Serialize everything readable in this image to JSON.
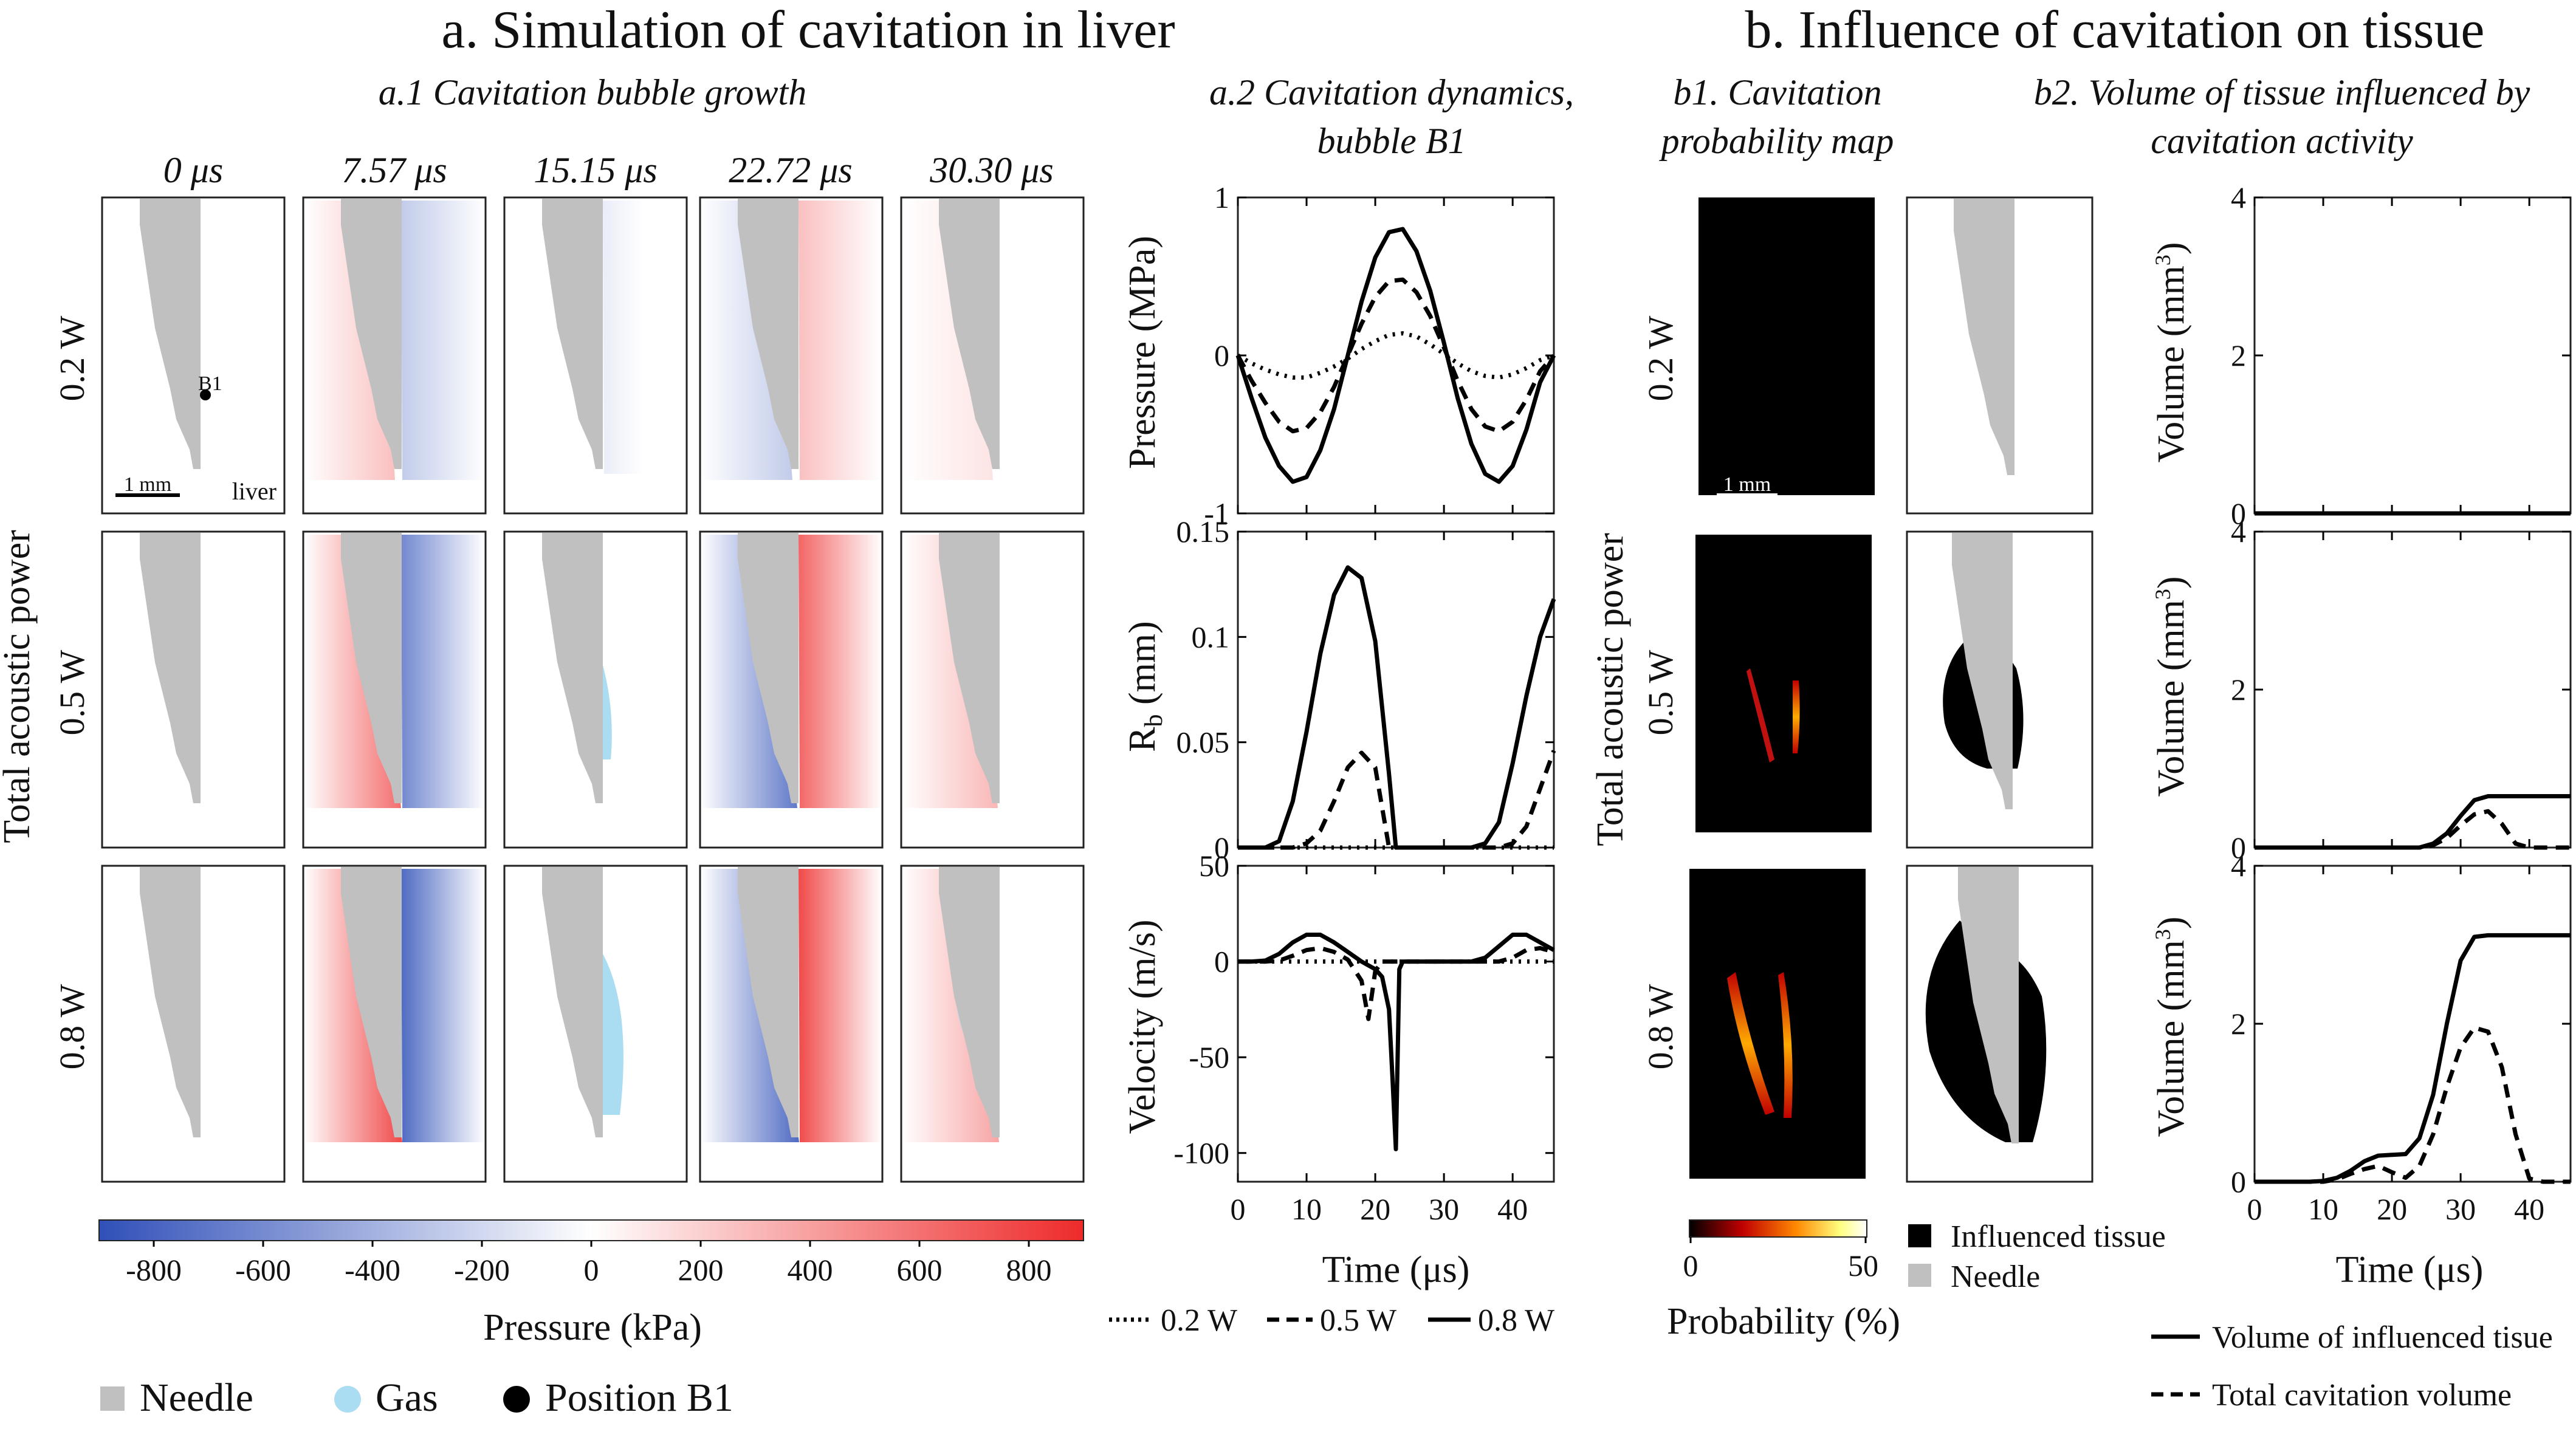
{
  "section_a": {
    "title": "a. Simulation of cavitation in liver",
    "sub1": "a.1 Cavitation bubble growth",
    "sub2_line1": "a.2 Cavitation dynamics,",
    "sub2_line2": "bubble B1",
    "times": [
      "0 μs",
      "7.57 μs",
      "15.15 μs",
      "22.72 μs",
      "30.30 μs"
    ],
    "powers": [
      "0.2 W",
      "0.5 W",
      "0.8 W"
    ],
    "row_axis_label": "Total acoustic power",
    "annotation_b1": "B1",
    "annotation_scale": "1 mm",
    "annotation_tissue": "liver"
  },
  "section_b": {
    "title": "b. Influence of cavitation on tissue",
    "sub1_line1": "b1. Cavitation",
    "sub1_line2": "probability map",
    "sub2_line1": "b2. Volume of tissue influenced by",
    "sub2_line2": "cavitation activity",
    "powers": [
      "0.2 W",
      "0.5 W",
      "0.8 W"
    ],
    "row_axis_label": "Total acoustic power",
    "annotation_scale": "1 mm"
  },
  "pressure_colorbar": {
    "label": "Pressure (kPa)",
    "ticks": [
      "-800",
      "-600",
      "-400",
      "-200",
      "0",
      "200",
      "400",
      "600",
      "800"
    ],
    "range": [
      -900,
      900
    ],
    "colors": [
      "#3050b8",
      "#ffffff",
      "#ee2a2a"
    ]
  },
  "probability_colorbar": {
    "label": "Probability (%)",
    "ticks": [
      "0",
      "50"
    ],
    "range": [
      0,
      50
    ],
    "colors": [
      "#000000",
      "#c00000",
      "#ff8800",
      "#ffff80",
      "#ffffff"
    ]
  },
  "legend_a": {
    "needle": "Needle",
    "gas": "Gas",
    "position": "Position B1",
    "needle_color": "#c0c0c0",
    "gas_color": "#aadcf2"
  },
  "legend_b1": {
    "influenced": "Influenced tissue",
    "needle": "Needle",
    "influenced_color": "#000000",
    "needle_color": "#c0c0c0"
  },
  "legend_series": {
    "s02": "0.2 W",
    "s05": "0.5 W",
    "s08": "0.8 W"
  },
  "legend_b2": {
    "solid": "Volume of influenced tisue",
    "dashed": "Total cavitation volume"
  },
  "chart_data": [
    {
      "type": "line",
      "id": "pressure",
      "ylabel": "Pressure (MPa)",
      "xlim": [
        0,
        46
      ],
      "ylim": [
        -1,
        1
      ],
      "yticks": [
        -1,
        0,
        1
      ],
      "x": [
        0,
        2,
        4,
        6,
        8,
        10,
        12,
        14,
        16,
        18,
        20,
        22,
        24,
        26,
        28,
        30,
        32,
        34,
        36,
        38,
        40,
        42,
        44,
        46
      ],
      "series": [
        {
          "name": "0.2 W",
          "style": "dotted",
          "values": [
            0,
            -0.05,
            -0.09,
            -0.12,
            -0.14,
            -0.14,
            -0.11,
            -0.07,
            -0.02,
            0.04,
            0.09,
            0.13,
            0.14,
            0.12,
            0.07,
            0.01,
            -0.05,
            -0.1,
            -0.13,
            -0.14,
            -0.12,
            -0.08,
            -0.03,
            0.0
          ]
        },
        {
          "name": "0.5 W",
          "style": "dashed",
          "values": [
            0,
            -0.16,
            -0.3,
            -0.42,
            -0.48,
            -0.46,
            -0.36,
            -0.2,
            0.0,
            0.2,
            0.37,
            0.47,
            0.48,
            0.4,
            0.25,
            0.05,
            -0.16,
            -0.34,
            -0.45,
            -0.48,
            -0.42,
            -0.28,
            -0.1,
            0.0
          ]
        },
        {
          "name": "0.8 W",
          "style": "solid",
          "values": [
            0,
            -0.27,
            -0.52,
            -0.7,
            -0.8,
            -0.77,
            -0.6,
            -0.34,
            0.0,
            0.34,
            0.62,
            0.78,
            0.8,
            0.66,
            0.41,
            0.08,
            -0.27,
            -0.56,
            -0.75,
            -0.8,
            -0.7,
            -0.47,
            -0.17,
            0.0
          ]
        }
      ]
    },
    {
      "type": "line",
      "id": "radius",
      "ylabel": "R_b (mm)",
      "xlim": [
        0,
        46
      ],
      "ylim": [
        0,
        0.15
      ],
      "yticks": [
        0,
        0.05,
        0.1,
        0.15
      ],
      "ytick_labels": [
        "0",
        "0.05",
        "0.1",
        "0.15"
      ],
      "x": [
        0,
        2,
        4,
        6,
        8,
        10,
        12,
        14,
        16,
        18,
        20,
        22,
        23,
        24,
        26,
        28,
        30,
        32,
        34,
        36,
        38,
        40,
        42,
        44,
        46
      ],
      "series": [
        {
          "name": "0.2 W",
          "style": "dotted",
          "values": [
            0,
            0,
            0,
            0,
            0,
            0,
            0,
            0,
            0,
            0,
            0,
            0,
            0,
            0,
            0,
            0,
            0,
            0,
            0,
            0,
            0,
            0,
            0,
            0,
            0
          ]
        },
        {
          "name": "0.5 W",
          "style": "dashed",
          "values": [
            0,
            0,
            0,
            0,
            0,
            0.002,
            0.008,
            0.022,
            0.038,
            0.045,
            0.038,
            0,
            0,
            0,
            0,
            0,
            0,
            0,
            0,
            0,
            0,
            0.002,
            0.01,
            0.028,
            0.046
          ]
        },
        {
          "name": "0.8 W",
          "style": "solid",
          "values": [
            0,
            0,
            0,
            0.003,
            0.022,
            0.055,
            0.092,
            0.12,
            0.133,
            0.128,
            0.098,
            0.035,
            0,
            0,
            0,
            0,
            0,
            0,
            0,
            0.002,
            0.012,
            0.04,
            0.072,
            0.1,
            0.118
          ]
        }
      ]
    },
    {
      "type": "line",
      "id": "velocity",
      "ylabel": "Velocity (m/s)",
      "xlabel": "Time (μs)",
      "xlim": [
        0,
        46
      ],
      "ylim": [
        -115,
        50
      ],
      "yticks": [
        -100,
        -50,
        0,
        50
      ],
      "xticks": [
        0,
        10,
        20,
        30,
        40
      ],
      "x": [
        0,
        2,
        4,
        6,
        8,
        10,
        12,
        14,
        16,
        18,
        19,
        20,
        21,
        22,
        22.5,
        23,
        23.5,
        24,
        26,
        28,
        30,
        32,
        34,
        36,
        38,
        40,
        42,
        44,
        46
      ],
      "series": [
        {
          "name": "0.2 W",
          "style": "dotted",
          "values": [
            0,
            0,
            0,
            0,
            0,
            0,
            0,
            0,
            0,
            0,
            0,
            0,
            0,
            0,
            0,
            0,
            0,
            0,
            0,
            0,
            0,
            0,
            0,
            0,
            0,
            0,
            0,
            0,
            0
          ]
        },
        {
          "name": "0.5 W",
          "style": "dashed",
          "values": [
            0,
            0,
            0,
            0.5,
            3,
            6,
            7,
            5,
            1,
            -10,
            -30,
            -5,
            0,
            0,
            0,
            0,
            0,
            0,
            0,
            0,
            0,
            0,
            0,
            0,
            0,
            2,
            6,
            7,
            5
          ]
        },
        {
          "name": "0.8 W",
          "style": "solid",
          "values": [
            0,
            0,
            0.5,
            4,
            10,
            14,
            14,
            10,
            5,
            0,
            -2,
            -4,
            -8,
            -25,
            -60,
            -98,
            -4,
            0,
            0,
            0,
            0,
            0,
            0,
            2,
            8,
            14,
            14,
            10,
            6
          ]
        }
      ]
    },
    {
      "type": "line",
      "id": "volume_02",
      "ylabel": "Volume (mm³)",
      "xlim": [
        0,
        46
      ],
      "ylim": [
        0,
        4
      ],
      "yticks": [
        0,
        2,
        4
      ],
      "x": [
        0,
        46
      ],
      "series": [
        {
          "name": "Volume of influenced tisue",
          "style": "solid",
          "values": [
            0,
            0
          ]
        },
        {
          "name": "Total cavitation volume",
          "style": "dashed",
          "values": [
            0,
            0
          ]
        }
      ]
    },
    {
      "type": "line",
      "id": "volume_05",
      "ylabel": "Volume (mm³)",
      "xlim": [
        0,
        46
      ],
      "ylim": [
        0,
        4
      ],
      "yticks": [
        0,
        2,
        4
      ],
      "x": [
        0,
        20,
        24,
        26,
        28,
        30,
        32,
        34,
        36,
        38,
        40,
        42,
        44,
        46
      ],
      "series": [
        {
          "name": "Volume of influenced tisue",
          "style": "solid",
          "values": [
            0,
            0,
            0,
            0.05,
            0.18,
            0.4,
            0.6,
            0.65,
            0.65,
            0.65,
            0.65,
            0.65,
            0.65,
            0.65
          ]
        },
        {
          "name": "Total cavitation volume",
          "style": "dashed",
          "values": [
            0,
            0,
            0,
            0.03,
            0.12,
            0.28,
            0.42,
            0.46,
            0.3,
            0.05,
            0,
            0,
            0,
            0
          ]
        }
      ]
    },
    {
      "type": "line",
      "id": "volume_08",
      "ylabel": "Volume (mm³)",
      "xlabel": "Time (μs)",
      "xlim": [
        0,
        46
      ],
      "ylim": [
        0,
        4
      ],
      "yticks": [
        0,
        2,
        4
      ],
      "xticks": [
        0,
        10,
        20,
        30,
        40
      ],
      "x": [
        0,
        8,
        10,
        12,
        14,
        16,
        18,
        20,
        22,
        24,
        26,
        28,
        30,
        32,
        34,
        36,
        38,
        40,
        42,
        44,
        46
      ],
      "series": [
        {
          "name": "Volume of influenced tisue",
          "style": "solid",
          "values": [
            0,
            0,
            0.01,
            0.05,
            0.14,
            0.26,
            0.33,
            0.34,
            0.35,
            0.55,
            1.1,
            2.0,
            2.8,
            3.1,
            3.12,
            3.12,
            3.12,
            3.12,
            3.12,
            3.12,
            3.12
          ]
        },
        {
          "name": "Total cavitation volume",
          "style": "dashed",
          "values": [
            0,
            0,
            0,
            0.03,
            0.1,
            0.16,
            0.2,
            0.12,
            0.05,
            0.2,
            0.6,
            1.2,
            1.7,
            1.95,
            1.9,
            1.45,
            0.6,
            0.04,
            0,
            0,
            0
          ]
        }
      ]
    }
  ]
}
